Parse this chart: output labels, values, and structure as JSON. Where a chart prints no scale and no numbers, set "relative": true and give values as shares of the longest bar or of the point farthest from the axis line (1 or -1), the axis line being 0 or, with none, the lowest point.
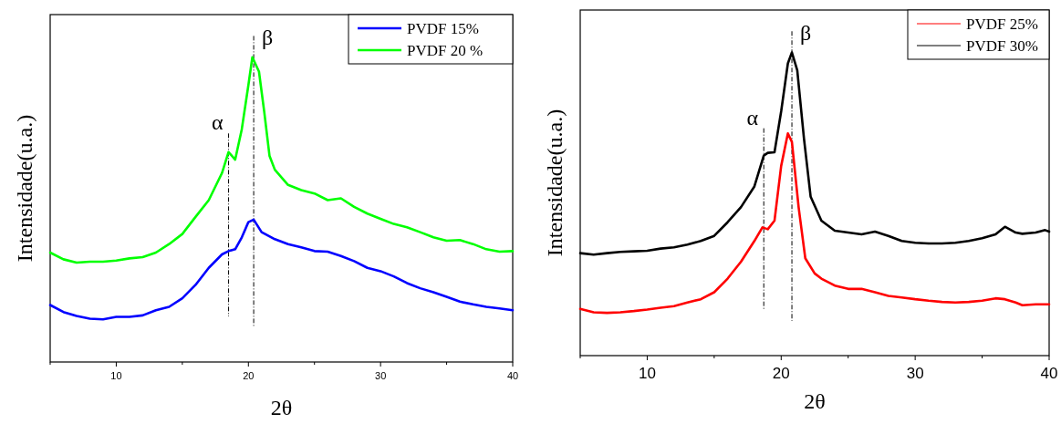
{
  "chart_data": [
    {
      "type": "line",
      "xlabel": "2θ",
      "ylabel": "Intensidade(u.a.)",
      "relative": true,
      "xlim": [
        5,
        40
      ],
      "xticks": [
        {
          "value": 5,
          "label": null
        },
        10,
        {
          "value": 15,
          "label": null
        },
        20,
        {
          "value": 25,
          "label": null
        },
        30,
        {
          "value": 35,
          "label": null
        },
        40
      ],
      "legend": "top right",
      "ref_lines": [
        {
          "axis": "x",
          "value": 18.5,
          "label": "α",
          "color": "#000000",
          "line_style": "dashdot"
        },
        {
          "axis": "x",
          "value": 20.4,
          "label": "β",
          "color": "#000000",
          "line_style": "dashdot"
        }
      ],
      "series": [
        {
          "name": "PVDF 15%",
          "color": "#0000ff",
          "x": [
            5,
            6,
            7,
            8,
            9,
            10,
            11,
            12,
            13,
            14,
            15,
            16,
            17,
            18,
            18.5,
            19,
            19.5,
            20,
            20.4,
            21,
            22,
            23,
            24,
            25,
            26,
            27,
            28,
            29,
            30,
            31,
            32,
            33,
            34,
            35,
            36,
            37,
            38,
            39,
            40
          ],
          "values": [
            0.187,
            0.164,
            0.151,
            0.142,
            0.14,
            0.148,
            0.148,
            0.153,
            0.17,
            0.181,
            0.209,
            0.253,
            0.309,
            0.353,
            0.364,
            0.37,
            0.409,
            0.459,
            0.467,
            0.426,
            0.403,
            0.387,
            0.376,
            0.364,
            0.362,
            0.348,
            0.331,
            0.309,
            0.298,
            0.281,
            0.259,
            0.242,
            0.229,
            0.214,
            0.198,
            0.189,
            0.181,
            0.176,
            0.17
          ]
        },
        {
          "name": "PVDF 20 %",
          "color": "#00ff00",
          "x": [
            5,
            6,
            7,
            8,
            9,
            10,
            11,
            12,
            13,
            14,
            15,
            16,
            17,
            18,
            18.5,
            19,
            19.5,
            20,
            20.3,
            20.8,
            21.2,
            21.6,
            22,
            23,
            24,
            25,
            26,
            27,
            28,
            29,
            30,
            31,
            32,
            33,
            34,
            35,
            36,
            37,
            38,
            39,
            40
          ],
          "values": [
            0.359,
            0.337,
            0.326,
            0.329,
            0.329,
            0.333,
            0.34,
            0.344,
            0.359,
            0.387,
            0.42,
            0.476,
            0.531,
            0.62,
            0.689,
            0.664,
            0.764,
            0.909,
            1,
            0.953,
            0.82,
            0.676,
            0.631,
            0.581,
            0.564,
            0.553,
            0.531,
            0.537,
            0.509,
            0.487,
            0.47,
            0.453,
            0.442,
            0.426,
            0.409,
            0.398,
            0.4,
            0.387,
            0.37,
            0.362,
            0.364
          ]
        }
      ]
    },
    {
      "type": "line",
      "xlabel": "2θ",
      "ylabel": "Intensidade(u.a.)",
      "relative": true,
      "xlim": [
        5,
        40
      ],
      "xticks": [
        {
          "value": 5,
          "label": null
        },
        10,
        {
          "value": 15,
          "label": null
        },
        20,
        {
          "value": 25,
          "label": null
        },
        30,
        {
          "value": 35,
          "label": null
        },
        40
      ],
      "legend": "top right",
      "ref_lines": [
        {
          "axis": "x",
          "value": 18.7,
          "label": "α",
          "color": "#000000",
          "line_style": "dashdot"
        },
        {
          "axis": "x",
          "value": 20.8,
          "label": "β",
          "color": "#000000",
          "line_style": "dashdot"
        }
      ],
      "series": [
        {
          "name": "PVDF 25%",
          "color": "#ff0000",
          "x": [
            5,
            6,
            7,
            8,
            9,
            10,
            11,
            12,
            13,
            14,
            15,
            16,
            17,
            18,
            18.6,
            19,
            19.5,
            20,
            20.5,
            20.8,
            21.3,
            21.8,
            22.5,
            23,
            24,
            25,
            26,
            27,
            28,
            29,
            30,
            31,
            32,
            33,
            34,
            35,
            36,
            36.7,
            37.5,
            38,
            39,
            40
          ],
          "values": [
            0.154,
            0.143,
            0.141,
            0.143,
            0.147,
            0.152,
            0.158,
            0.163,
            0.175,
            0.186,
            0.209,
            0.254,
            0.31,
            0.378,
            0.423,
            0.417,
            0.445,
            0.626,
            0.733,
            0.705,
            0.49,
            0.321,
            0.271,
            0.254,
            0.231,
            0.22,
            0.22,
            0.209,
            0.197,
            0.192,
            0.186,
            0.181,
            0.177,
            0.175,
            0.177,
            0.181,
            0.189,
            0.186,
            0.175,
            0.166,
            0.169,
            0.169
          ]
        },
        {
          "name": "PVDF 30%",
          "color": "#000000",
          "x": [
            5,
            6,
            7,
            8,
            9,
            10,
            11,
            12,
            13,
            14,
            15,
            16,
            17,
            18,
            18.7,
            19,
            19.5,
            20,
            20.5,
            20.8,
            21.2,
            21.7,
            22.2,
            23,
            24,
            25,
            26,
            27,
            28,
            29,
            30,
            31,
            32,
            33,
            34,
            35,
            36,
            36.7,
            37.5,
            38,
            39,
            39.7,
            40
          ],
          "values": [
            0.338,
            0.333,
            0.338,
            0.342,
            0.344,
            0.346,
            0.353,
            0.357,
            0.366,
            0.378,
            0.395,
            0.44,
            0.49,
            0.558,
            0.66,
            0.669,
            0.671,
            0.806,
            0.964,
            1,
            0.941,
            0.716,
            0.524,
            0.445,
            0.412,
            0.406,
            0.4,
            0.409,
            0.395,
            0.378,
            0.372,
            0.37,
            0.37,
            0.372,
            0.378,
            0.387,
            0.4,
            0.425,
            0.406,
            0.402,
            0.406,
            0.414,
            0.409
          ]
        }
      ]
    }
  ]
}
